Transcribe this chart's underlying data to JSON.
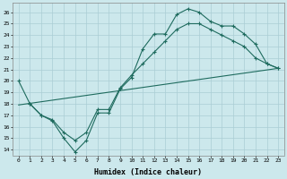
{
  "xlabel": "Humidex (Indice chaleur)",
  "xlim": [
    -0.5,
    23.5
  ],
  "ylim": [
    13.5,
    26.8
  ],
  "xticks": [
    0,
    1,
    2,
    3,
    4,
    5,
    6,
    7,
    8,
    9,
    10,
    11,
    12,
    13,
    14,
    15,
    16,
    17,
    18,
    19,
    20,
    21,
    22,
    23
  ],
  "yticks": [
    14,
    15,
    16,
    17,
    18,
    19,
    20,
    21,
    22,
    23,
    24,
    25,
    26
  ],
  "bg_color": "#cce8ec",
  "line_color": "#1e6b5e",
  "grid_color": "#aacdd4",
  "line1_x": [
    0,
    1,
    2,
    3,
    4,
    5,
    6,
    7,
    8,
    9,
    10,
    11,
    12,
    13,
    14,
    15,
    16,
    17,
    18,
    19,
    20,
    21,
    22,
    23
  ],
  "line1_y": [
    20,
    18,
    17,
    16.5,
    15,
    13.8,
    14.8,
    17.2,
    17.2,
    19.3,
    20.3,
    22.8,
    24.1,
    24.1,
    25.8,
    26.3,
    26.0,
    25.2,
    24.8,
    24.8,
    24.1,
    23.2,
    21.5,
    21.1
  ],
  "line2_x": [
    1,
    2,
    3,
    4,
    5,
    6,
    7,
    8,
    9,
    10,
    11,
    12,
    13,
    14,
    15,
    16,
    17,
    18,
    19,
    20,
    21,
    22,
    23
  ],
  "line2_y": [
    18,
    17,
    16.6,
    15.5,
    14.8,
    15.5,
    17.5,
    17.5,
    19.4,
    20.5,
    21.5,
    22.5,
    23.5,
    24.5,
    25.0,
    25.0,
    24.5,
    24.0,
    23.5,
    23.0,
    22.0,
    21.5,
    21.1
  ],
  "line3_x": [
    0,
    23
  ],
  "line3_y": [
    17.9,
    21.1
  ]
}
